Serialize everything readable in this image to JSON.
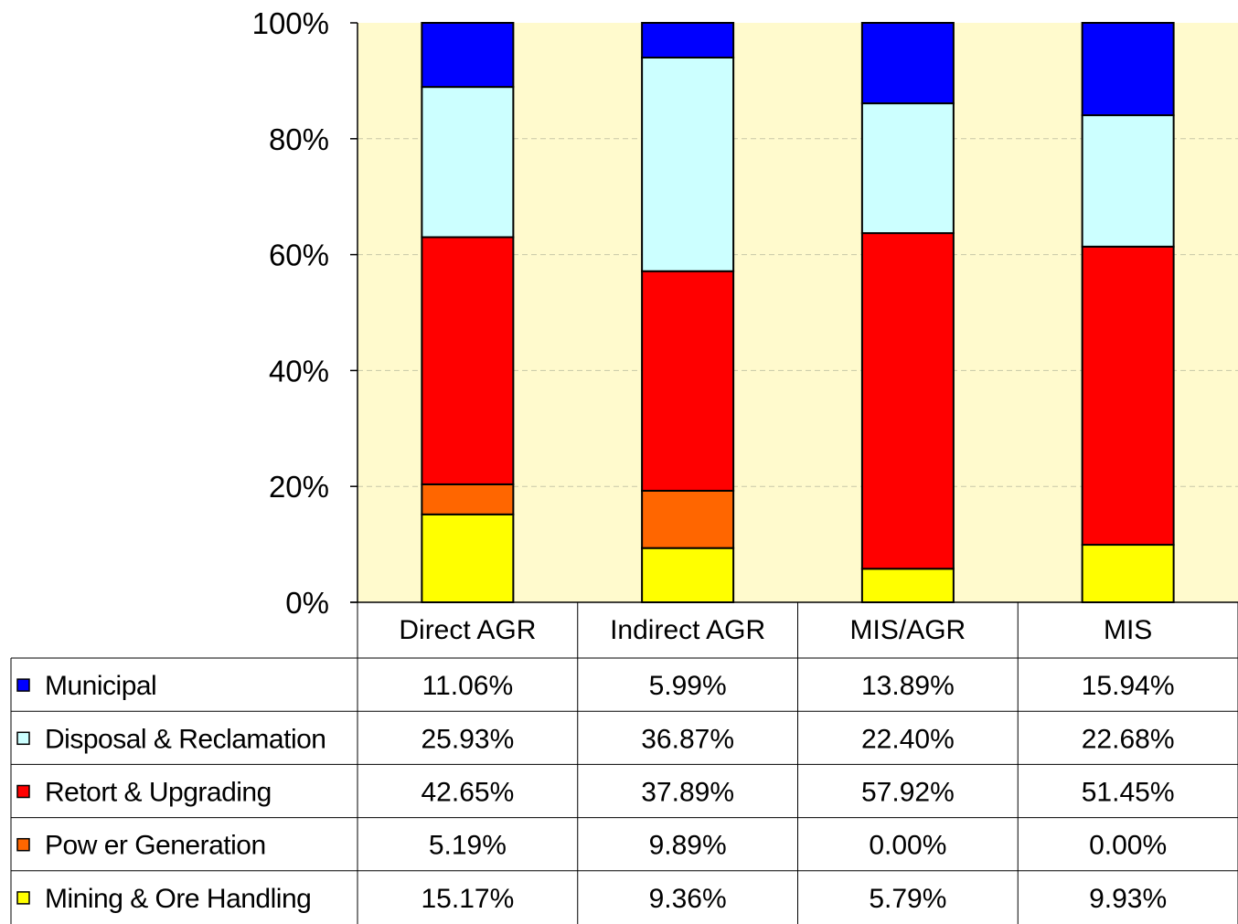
{
  "chart_data": {
    "type": "bar",
    "stacked": "percent",
    "categories": [
      "Direct AGR",
      "Indirect AGR",
      "MIS/AGR",
      "MIS"
    ],
    "ylim": [
      0,
      100
    ],
    "yticks": [
      "0%",
      "20%",
      "40%",
      "60%",
      "80%",
      "100%"
    ],
    "grid": true,
    "data_table": true,
    "colors": {
      "plot_background": "#FFFACD",
      "grid": "#C8C8A8"
    },
    "series": [
      {
        "name": "Mining & Ore Handling",
        "color": "#FFFF00",
        "values": [
          15.17,
          9.36,
          5.79,
          9.93
        ],
        "labels": [
          "15.17%",
          "9.36%",
          "5.79%",
          "9.93%"
        ]
      },
      {
        "name": "Pow er Generation",
        "color": "#FF6600",
        "values": [
          5.19,
          9.89,
          0.0,
          0.0
        ],
        "labels": [
          "5.19%",
          "9.89%",
          "0.00%",
          "0.00%"
        ]
      },
      {
        "name": "Retort & Upgrading",
        "color": "#FF0000",
        "values": [
          42.65,
          37.89,
          57.92,
          51.45
        ],
        "labels": [
          "42.65%",
          "37.89%",
          "57.92%",
          "51.45%"
        ]
      },
      {
        "name": "Disposal & Reclamation",
        "color": "#CCFFFF",
        "values": [
          25.93,
          36.87,
          22.4,
          22.68
        ],
        "labels": [
          "25.93%",
          "36.87%",
          "22.40%",
          "22.68%"
        ]
      },
      {
        "name": "Municipal",
        "color": "#0000FF",
        "values": [
          11.06,
          5.99,
          13.89,
          15.94
        ],
        "labels": [
          "11.06%",
          "5.99%",
          "13.89%",
          "15.94%"
        ]
      }
    ]
  }
}
